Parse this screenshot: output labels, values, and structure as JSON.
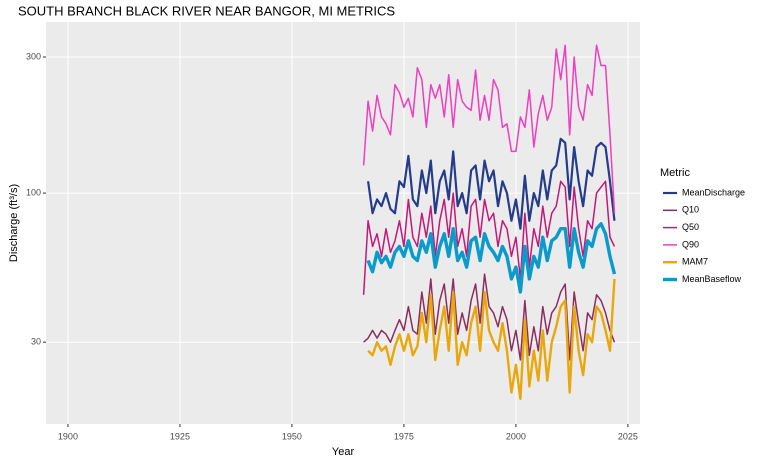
{
  "chart_data": {
    "type": "line",
    "title": "SOUTH BRANCH BLACK RIVER NEAR BANGOR, MI  METRICS",
    "x_label": "Year",
    "y_label": "Discharge (ft³/s)",
    "legend_title": "Metric",
    "log_y": true,
    "grid": true,
    "legend": "right",
    "xlim": [
      1895.1,
      2027.7
    ],
    "xticks": [
      1900,
      1925,
      1950,
      1975,
      2000,
      2025
    ],
    "ylim": [
      15.5,
      398
    ],
    "yticks": [
      30,
      100,
      300
    ],
    "x": [
      1966,
      1967,
      1968,
      1969,
      1970,
      1971,
      1972,
      1973,
      1974,
      1975,
      1976,
      1977,
      1978,
      1979,
      1980,
      1981,
      1982,
      1983,
      1984,
      1985,
      1986,
      1987,
      1988,
      1989,
      1990,
      1991,
      1992,
      1993,
      1994,
      1995,
      1996,
      1997,
      1998,
      1999,
      2000,
      2001,
      2002,
      2003,
      2004,
      2005,
      2006,
      2007,
      2008,
      2009,
      2010,
      2011,
      2012,
      2013,
      2014,
      2015,
      2016,
      2017,
      2018,
      2019,
      2020,
      2021,
      2022
    ],
    "series": [
      {
        "name": "MeanDischarge",
        "color": "#253c8a",
        "width": 2.2,
        "values": [
          null,
          110,
          85,
          95,
          90,
          100,
          88,
          85,
          110,
          105,
          135,
          95,
          90,
          120,
          100,
          130,
          85,
          110,
          120,
          95,
          140,
          90,
          100,
          85,
          120,
          125,
          95,
          130,
          110,
          120,
          90,
          110,
          100,
          80,
          95,
          75,
          115,
          80,
          100,
          90,
          120,
          95,
          120,
          125,
          155,
          150,
          95,
          145,
          110,
          90,
          120,
          115,
          145,
          150,
          145,
          110,
          80
        ]
      },
      {
        "name": "Q10",
        "color": "#8b2e5e",
        "width": 1.5,
        "values": [
          30,
          31,
          33,
          31,
          33,
          32,
          30,
          33,
          36,
          33,
          40,
          33,
          32,
          45,
          35,
          50,
          32,
          42,
          48,
          35,
          50,
          32,
          38,
          33,
          42,
          48,
          35,
          52,
          40,
          38,
          34,
          40,
          36,
          28,
          33,
          26,
          42,
          27,
          34,
          28,
          40,
          32,
          38,
          40,
          45,
          48,
          26,
          45,
          35,
          28,
          38,
          36,
          44,
          42,
          38,
          33,
          30
        ]
      },
      {
        "name": "Q50",
        "color": "#c2187a",
        "width": 1.5,
        "values": [
          44,
          80,
          65,
          72,
          60,
          75,
          62,
          68,
          80,
          65,
          95,
          70,
          65,
          85,
          70,
          90,
          60,
          80,
          95,
          70,
          100,
          65,
          75,
          60,
          90,
          95,
          70,
          95,
          80,
          85,
          65,
          80,
          75,
          60,
          70,
          50,
          85,
          55,
          75,
          65,
          90,
          70,
          85,
          90,
          110,
          105,
          65,
          105,
          75,
          60,
          80,
          75,
          100,
          105,
          110,
          70,
          65
        ]
      },
      {
        "name": "Q90",
        "color": "#f03ec0",
        "width": 1.5,
        "values": [
          125,
          210,
          165,
          220,
          185,
          175,
          160,
          240,
          225,
          200,
          215,
          185,
          275,
          250,
          170,
          240,
          215,
          240,
          185,
          260,
          170,
          250,
          210,
          200,
          195,
          270,
          180,
          220,
          180,
          250,
          230,
          170,
          175,
          140,
          140,
          185,
          170,
          230,
          145,
          190,
          220,
          180,
          200,
          320,
          250,
          330,
          160,
          300,
          200,
          180,
          240,
          220,
          330,
          280,
          280,
          160,
          85
        ]
      },
      {
        "name": "MAM7",
        "color": "#e8a80c",
        "width": 2.4,
        "values": [
          null,
          28,
          27,
          30,
          28,
          29,
          25,
          29,
          32,
          28,
          32,
          27,
          29,
          38,
          30,
          44,
          26,
          33,
          40,
          28,
          45,
          25,
          30,
          27,
          35,
          40,
          28,
          45,
          33,
          30,
          28,
          35,
          28,
          20,
          25,
          19,
          36,
          21,
          28,
          22,
          33,
          22,
          30,
          34,
          40,
          42,
          20,
          40,
          28,
          23,
          32,
          30,
          40,
          38,
          33,
          28,
          50
        ]
      },
      {
        "name": "MeanBaseflow",
        "color": "#0a9bcb",
        "width": 3.4,
        "values": [
          null,
          58,
          53,
          62,
          57,
          60,
          55,
          62,
          65,
          60,
          68,
          60,
          58,
          68,
          62,
          72,
          55,
          65,
          72,
          60,
          75,
          58,
          62,
          55,
          68,
          70,
          58,
          72,
          65,
          62,
          58,
          65,
          60,
          50,
          55,
          45,
          65,
          50,
          60,
          55,
          70,
          58,
          68,
          70,
          75,
          75,
          55,
          75,
          62,
          55,
          68,
          65,
          75,
          78,
          72,
          60,
          52
        ]
      }
    ]
  }
}
